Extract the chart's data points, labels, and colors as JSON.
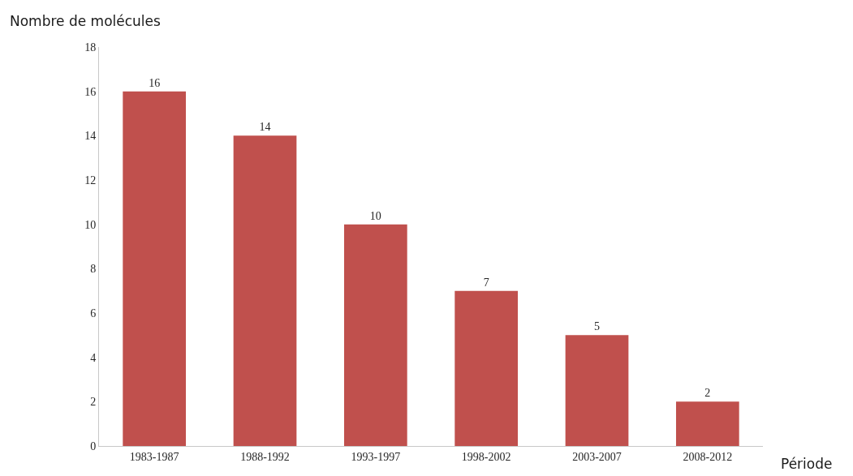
{
  "chart_data": {
    "type": "bar",
    "ylabel": "Nombre de molécules",
    "xlabel": "Période",
    "categories": [
      "1983-1987",
      "1988-1992",
      "1993-1997",
      "1998-2002",
      "2003-2007",
      "2008-2012"
    ],
    "values": [
      16,
      14,
      10,
      7,
      5,
      2
    ],
    "color": "#c0504d",
    "ylim": [
      0,
      18
    ],
    "yticks": [
      0,
      2,
      4,
      6,
      8,
      10,
      12,
      14,
      16,
      18
    ],
    "data_labels": true,
    "grid": false,
    "legend": false
  }
}
